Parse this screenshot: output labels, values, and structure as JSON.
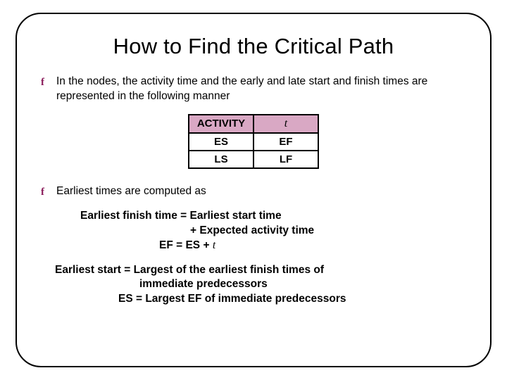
{
  "title": "How to Find the Critical Path",
  "bullets": {
    "b1": "In the nodes, the activity time and the early and late start and finish times are represented in the following manner",
    "b2": "Earliest times are computed as"
  },
  "bullet_icon": "f",
  "bullet_color": "#8a1a5a",
  "node_table": {
    "r1c1": "ACTIVITY",
    "r1c2": "t",
    "r2c1": "ES",
    "r2c2": "EF",
    "r3c1": "LS",
    "r3c2": "LF",
    "header_bg": "#d9a8c4",
    "border_color": "#000000"
  },
  "formula1": {
    "l1": "Earliest finish time = Earliest start time",
    "l2": "+ Expected activity time",
    "l3a": "EF = ES + ",
    "l3b": "t"
  },
  "formula2": {
    "l1": "Earliest start = Largest of the earliest finish times of",
    "l2": "immediate predecessors",
    "l3": "ES = Largest EF of immediate predecessors"
  },
  "style": {
    "title_fontsize": 31,
    "body_fontsize": 15.5,
    "border_radius": 36,
    "slide_width": 720,
    "slide_height": 540,
    "background": "#ffffff"
  }
}
